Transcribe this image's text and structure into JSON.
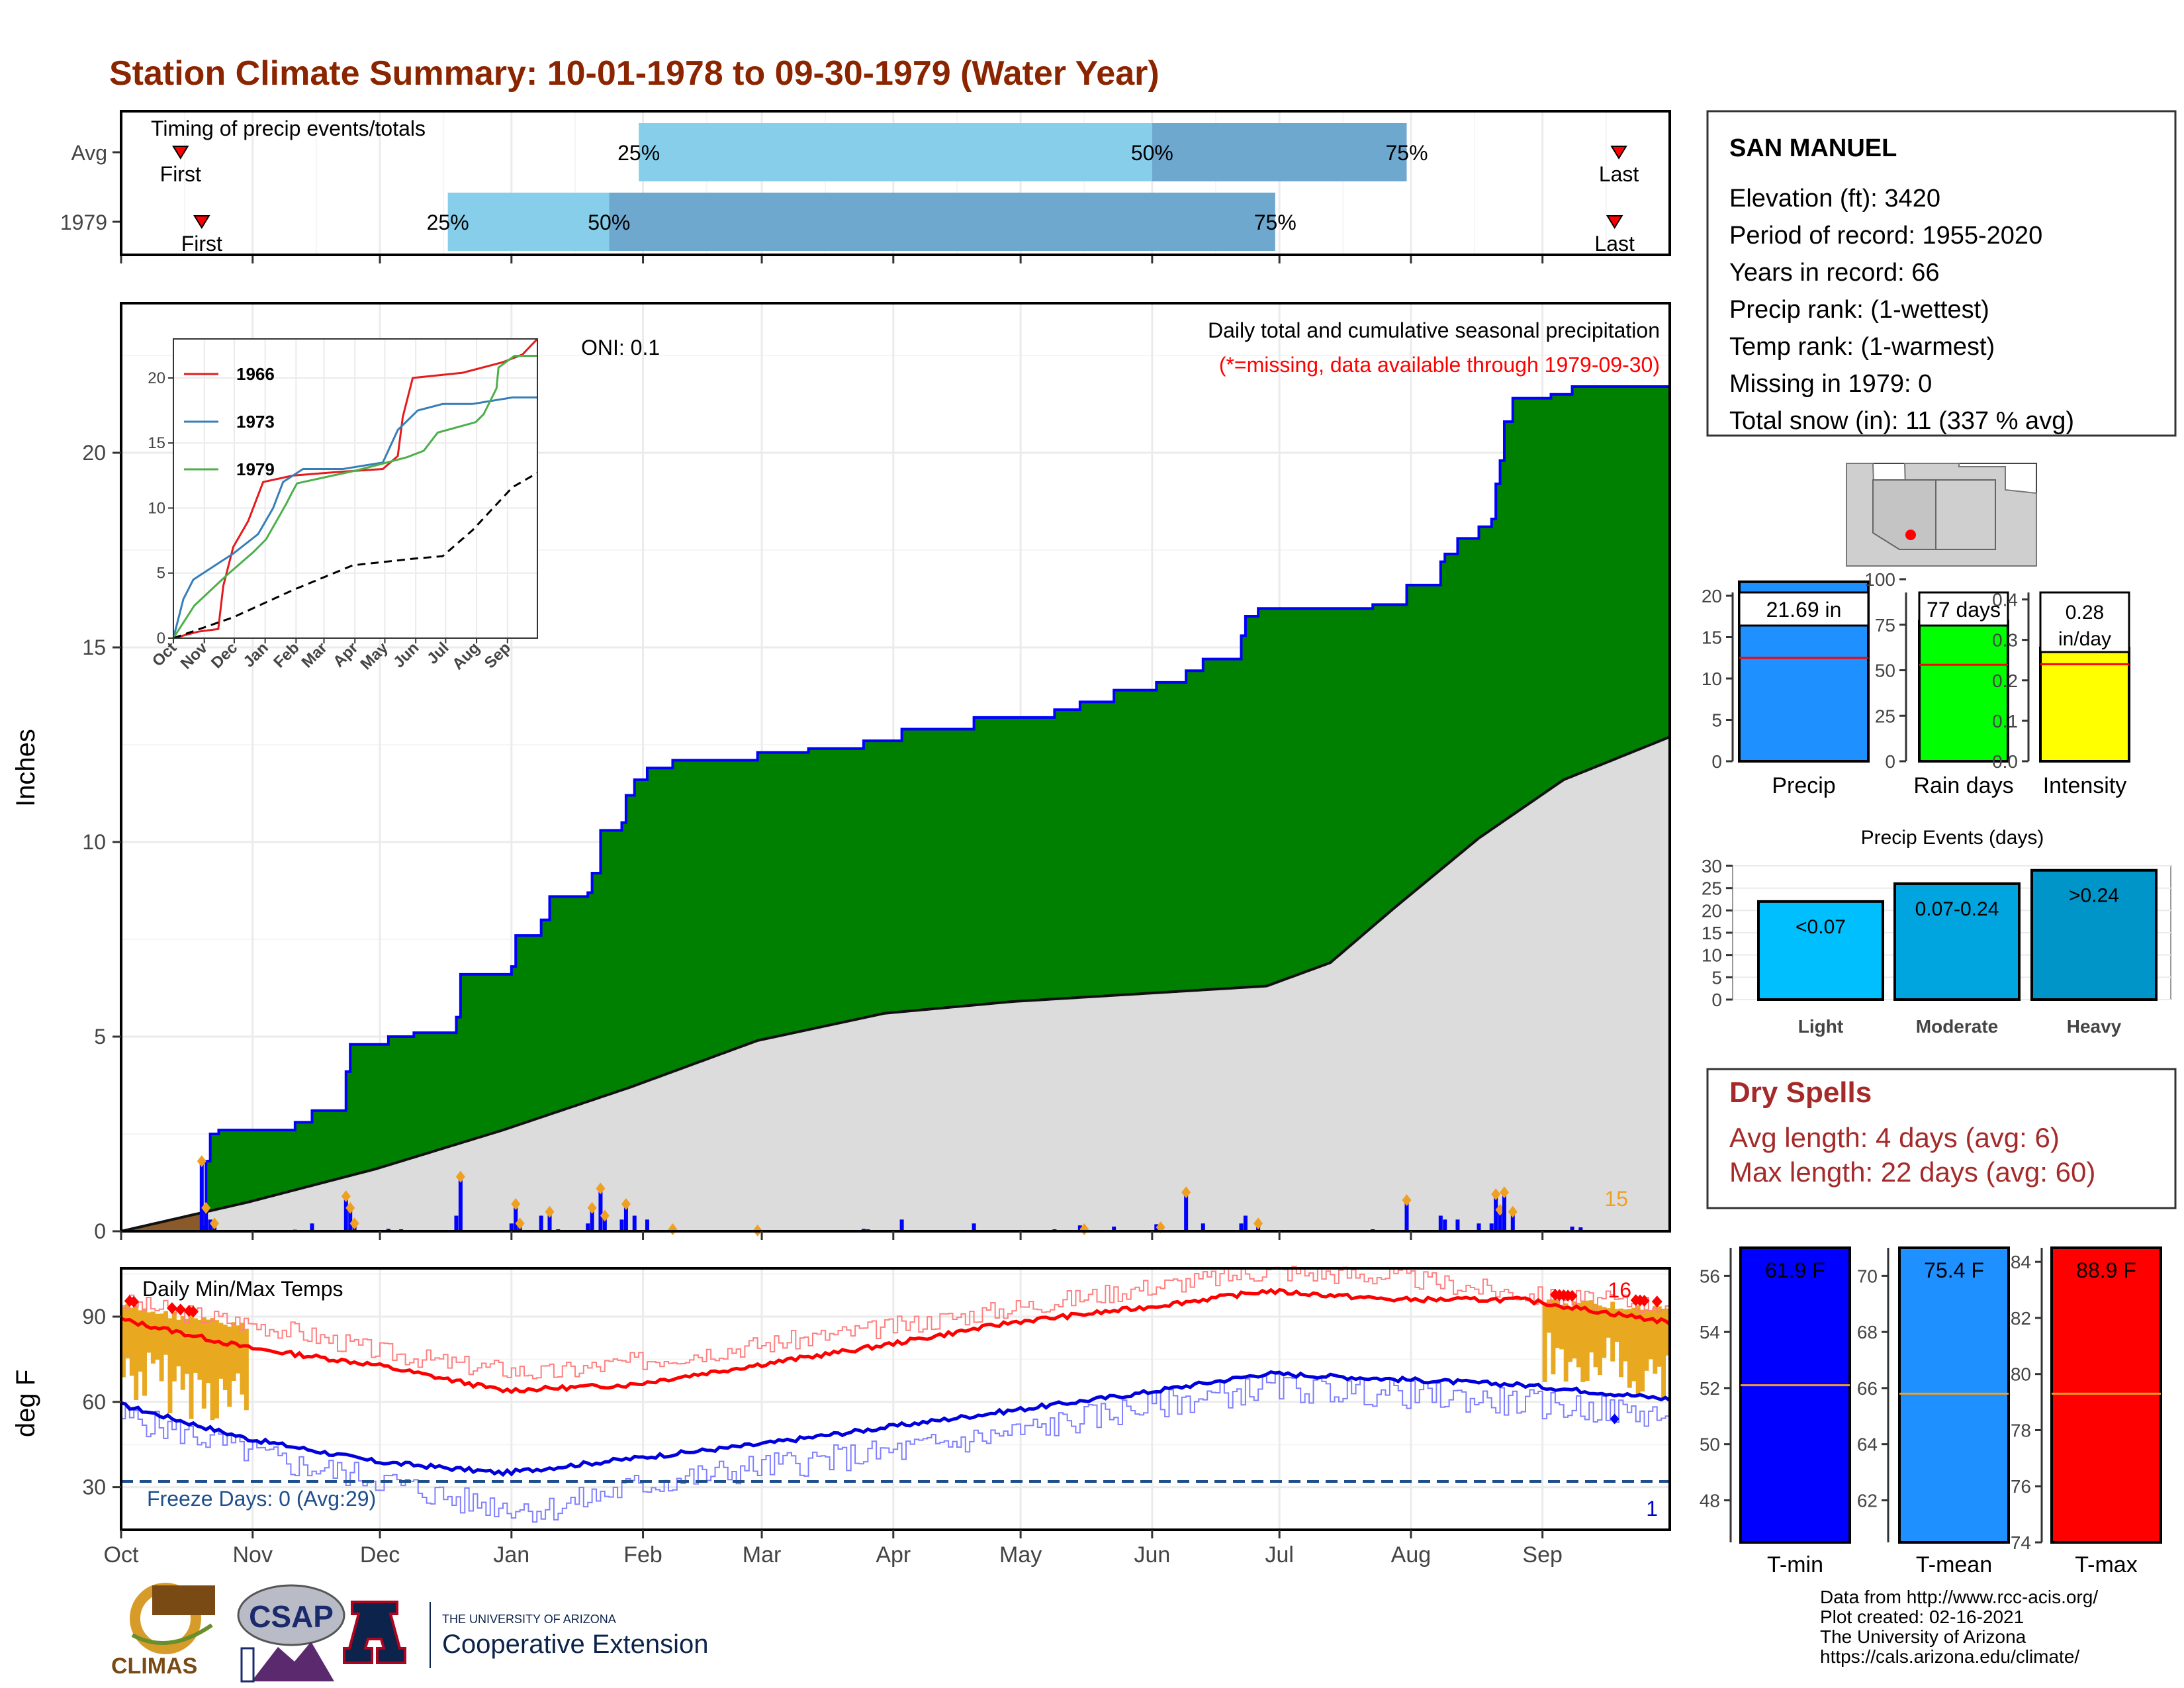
{
  "title": "Station Climate Summary: 10-01-1978 to 09-30-1979 (Water Year)",
  "timing": {
    "label": "Timing of precip events/totals",
    "rows": [
      {
        "name": "Avg",
        "first_day": 14,
        "p25": 122,
        "p50": 243,
        "p75": 303,
        "last_day": 353
      },
      {
        "name": "1979",
        "first_day": 19,
        "p25": 77,
        "p50": 115,
        "p75": 272,
        "last_day": 352
      }
    ],
    "first_label": "First",
    "last_label": "Last",
    "p25_label": "25%",
    "p50_label": "50%",
    "p75_label": "75%"
  },
  "station": {
    "name": "SAN MANUEL",
    "lines": [
      "Elevation (ft): 3420",
      "Period of record: 1955-2020",
      "Years in record: 66",
      "Precip rank:  (1-wettest)",
      "Temp rank:  (1-warmest)",
      "Missing in 1979: 0",
      "Total snow (in): 11 (337 % avg)"
    ]
  },
  "precip_panel": {
    "ylabel": "Inches",
    "oni": "ONI: 0.1",
    "caption": "Daily total and cumulative seasonal precipitation",
    "missing_note": "(*=missing, data available through 1979-09-30)",
    "count_label": "15"
  },
  "temp_panel": {
    "ylabel": "deg F",
    "title": "Daily Min/Max Temps",
    "freeze": "Freeze Days: 0 (Avg:29)",
    "hot_count": "16",
    "cold_count": "1"
  },
  "month_labels": [
    "Oct",
    "Nov",
    "Dec",
    "Jan",
    "Feb",
    "Mar",
    "Apr",
    "May",
    "Jun",
    "Jul",
    "Aug",
    "Sep"
  ],
  "inset_month_labels": [
    "Oct",
    "Nov",
    "Dec",
    "Jan",
    "Feb",
    "Mar",
    "Apr",
    "May",
    "Jun",
    "Jul",
    "Aug",
    "Sep"
  ],
  "bar_stats": [
    {
      "name": "Precip",
      "label": "21.69 in",
      "value": 21.69,
      "avg": 12.5,
      "color": "#1e90ff",
      "ymax": 22,
      "ticks": [
        0,
        5,
        10,
        15,
        20
      ]
    },
    {
      "name": "Rain days",
      "label": "77 days",
      "value": 77,
      "avg": 53,
      "color": "#00ff00",
      "ymax": 100,
      "ticks": [
        0,
        25,
        50,
        75,
        100
      ]
    },
    {
      "name": "Intensity",
      "label": "0.28 in/day",
      "value": 0.28,
      "avg": 0.24,
      "color": "#ffff00",
      "ymax": 0.45,
      "ticks": [
        "0.0",
        "0.1",
        "0.2",
        "0.3",
        "0.4"
      ]
    }
  ],
  "precip_events": {
    "title": "Precip Events (days)",
    "categories": [
      "Light",
      "Moderate",
      "Heavy"
    ],
    "labels": [
      "<0.07",
      "0.07-0.24",
      ">0.24"
    ],
    "values": [
      22,
      26,
      29
    ],
    "colors": [
      "#00bfff",
      "#00a5e0",
      "#0095c8"
    ],
    "ticks": [
      0,
      5,
      10,
      15,
      20,
      25,
      30
    ]
  },
  "dry_spells": {
    "title": "Dry Spells",
    "avg_line": "Avg length: 4 days (avg: 6)",
    "max_line": "Max length: 22 days (avg: 60)"
  },
  "temp_stats": [
    {
      "name": "T-min",
      "label": "61.9 F",
      "value": 61.9,
      "avg": 52.1,
      "color": "#0000ff",
      "ymin": 46.5,
      "ymax": 57,
      "ticks": [
        48,
        50,
        52,
        54,
        56
      ]
    },
    {
      "name": "T-mean",
      "label": "75.4 F",
      "value": 75.4,
      "avg": 65.8,
      "color": "#1e90ff",
      "ymin": 60.5,
      "ymax": 71,
      "ticks": [
        62,
        64,
        66,
        68,
        70
      ]
    },
    {
      "name": "T-max",
      "label": "88.9 F",
      "value": 88.9,
      "avg": 79.3,
      "color": "#ff0000",
      "ymin": 74,
      "ymax": 84.5,
      "ticks": [
        74,
        76,
        78,
        80,
        82,
        84
      ]
    }
  ],
  "footer": {
    "lines": [
      "Data from http://www.rcc-acis.org/",
      "Plot created: 02-16-2021",
      "The University of Arizona",
      "https://cals.arizona.edu/climate/"
    ],
    "logo_climas": "CLIMAS",
    "logo_csap": "CSAP",
    "logo_ua_small": "THE UNIVERSITY OF ARIZONA",
    "logo_ua_big": "Cooperative Extension"
  },
  "chart_data": [
    {
      "type": "area",
      "title": "Daily total and cumulative seasonal precipitation",
      "ylabel": "Inches",
      "ylim": [
        0,
        23.5
      ],
      "x_unit": "day of water year",
      "cumulative_1979": [
        [
          0,
          0
        ],
        [
          19,
          0.1
        ],
        [
          20,
          1.8
        ],
        [
          21,
          2.5
        ],
        [
          23,
          2.6
        ],
        [
          41,
          2.8
        ],
        [
          45,
          3.1
        ],
        [
          53,
          4.1
        ],
        [
          54,
          4.8
        ],
        [
          63,
          5.0
        ],
        [
          69,
          5.1
        ],
        [
          79,
          5.5
        ],
        [
          80,
          6.6
        ],
        [
          92,
          6.8
        ],
        [
          93,
          7.6
        ],
        [
          99,
          8.0
        ],
        [
          101,
          8.6
        ],
        [
          110,
          8.7
        ],
        [
          111,
          9.2
        ],
        [
          113,
          10.3
        ],
        [
          118,
          10.5
        ],
        [
          119,
          11.2
        ],
        [
          121,
          11.6
        ],
        [
          124,
          11.9
        ],
        [
          130,
          12.1
        ],
        [
          150,
          12.3
        ],
        [
          162,
          12.4
        ],
        [
          175,
          12.6
        ],
        [
          184,
          12.9
        ],
        [
          201,
          13.2
        ],
        [
          220,
          13.4
        ],
        [
          226,
          13.6
        ],
        [
          234,
          13.9
        ],
        [
          244,
          14.1
        ],
        [
          251,
          14.4
        ],
        [
          255,
          14.7
        ],
        [
          264,
          15.3
        ],
        [
          265,
          15.8
        ],
        [
          268,
          16.0
        ],
        [
          295,
          16.1
        ],
        [
          303,
          16.6
        ],
        [
          311,
          17.2
        ],
        [
          312,
          17.4
        ],
        [
          315,
          17.8
        ],
        [
          320,
          18.1
        ],
        [
          323,
          18.3
        ],
        [
          324,
          19.2
        ],
        [
          325,
          19.8
        ],
        [
          326,
          20.8
        ],
        [
          328,
          21.4
        ],
        [
          337,
          21.5
        ],
        [
          342,
          21.7
        ],
        [
          365,
          21.7
        ]
      ],
      "average_cumulative": [
        [
          0,
          0
        ],
        [
          30,
          0.75
        ],
        [
          60,
          1.6
        ],
        [
          90,
          2.6
        ],
        [
          120,
          3.7
        ],
        [
          150,
          4.9
        ],
        [
          180,
          5.6
        ],
        [
          210,
          5.9
        ],
        [
          240,
          6.1
        ],
        [
          270,
          6.3
        ],
        [
          285,
          6.9
        ],
        [
          300,
          8.3
        ],
        [
          320,
          10.1
        ],
        [
          340,
          11.6
        ],
        [
          365,
          12.7
        ]
      ],
      "daily_precip": [
        [
          19,
          1.8
        ],
        [
          20,
          0.6
        ],
        [
          21,
          0.3
        ],
        [
          22,
          0.2
        ],
        [
          41,
          0.04
        ],
        [
          45,
          0.2
        ],
        [
          53,
          0.9
        ],
        [
          54,
          0.6
        ],
        [
          55,
          0.2
        ],
        [
          63,
          0.06
        ],
        [
          66,
          0.05
        ],
        [
          79,
          0.4
        ],
        [
          80,
          1.4
        ],
        [
          92,
          0.2
        ],
        [
          93,
          0.7
        ],
        [
          94,
          0.2
        ],
        [
          99,
          0.4
        ],
        [
          101,
          0.5
        ],
        [
          103,
          0.05
        ],
        [
          110,
          0.2
        ],
        [
          111,
          0.6
        ],
        [
          113,
          1.1
        ],
        [
          114,
          0.4
        ],
        [
          118,
          0.3
        ],
        [
          119,
          0.7
        ],
        [
          121,
          0.4
        ],
        [
          124,
          0.3
        ],
        [
          130,
          0.05
        ],
        [
          150,
          0.02
        ],
        [
          162,
          0.02
        ],
        [
          175,
          0.06
        ],
        [
          176,
          0.05
        ],
        [
          184,
          0.3
        ],
        [
          201,
          0.2
        ],
        [
          220,
          0.05
        ],
        [
          226,
          0.15
        ],
        [
          227,
          0.05
        ],
        [
          234,
          0.12
        ],
        [
          244,
          0.18
        ],
        [
          245,
          0.1
        ],
        [
          251,
          1.0
        ],
        [
          255,
          0.2
        ],
        [
          264,
          0.2
        ],
        [
          265,
          0.4
        ],
        [
          268,
          0.2
        ],
        [
          295,
          0.05
        ],
        [
          303,
          0.8
        ],
        [
          311,
          0.4
        ],
        [
          312,
          0.3
        ],
        [
          315,
          0.3
        ],
        [
          320,
          0.2
        ],
        [
          323,
          0.2
        ],
        [
          324,
          0.95
        ],
        [
          325,
          0.55
        ],
        [
          326,
          1.0
        ],
        [
          328,
          0.5
        ],
        [
          337,
          0.03
        ],
        [
          342,
          0.12
        ],
        [
          344,
          0.1
        ]
      ]
    },
    {
      "type": "line",
      "title": "Daily Min/Max Temps",
      "ylabel": "deg F",
      "ylim": [
        15,
        107
      ],
      "freeze_line": 32,
      "avg_max": [
        [
          0,
          89
        ],
        [
          30,
          79
        ],
        [
          60,
          73
        ],
        [
          90,
          64
        ],
        [
          120,
          66
        ],
        [
          150,
          73
        ],
        [
          180,
          80
        ],
        [
          210,
          88
        ],
        [
          240,
          93
        ],
        [
          270,
          99
        ],
        [
          300,
          96
        ],
        [
          330,
          96
        ],
        [
          365,
          88
        ]
      ],
      "avg_min": [
        [
          0,
          59
        ],
        [
          30,
          47
        ],
        [
          60,
          39
        ],
        [
          90,
          35
        ],
        [
          120,
          40
        ],
        [
          150,
          45
        ],
        [
          180,
          51
        ],
        [
          210,
          57
        ],
        [
          240,
          63
        ],
        [
          270,
          70
        ],
        [
          300,
          68
        ],
        [
          330,
          66
        ],
        [
          365,
          61
        ]
      ],
      "max_1979": [
        [
          0,
          95
        ],
        [
          20,
          90
        ],
        [
          40,
          85
        ],
        [
          60,
          78
        ],
        [
          80,
          73
        ],
        [
          100,
          70
        ],
        [
          120,
          74
        ],
        [
          150,
          80
        ],
        [
          180,
          86
        ],
        [
          210,
          93
        ],
        [
          240,
          100
        ],
        [
          270,
          106
        ],
        [
          300,
          104
        ],
        [
          335,
          97
        ],
        [
          365,
          94
        ]
      ],
      "min_1979": [
        [
          0,
          55
        ],
        [
          20,
          47
        ],
        [
          40,
          38
        ],
        [
          60,
          33
        ],
        [
          80,
          25
        ],
        [
          100,
          22
        ],
        [
          120,
          30
        ],
        [
          150,
          37
        ],
        [
          180,
          42
        ],
        [
          210,
          49
        ],
        [
          240,
          58
        ],
        [
          270,
          65
        ],
        [
          300,
          63
        ],
        [
          335,
          59
        ],
        [
          365,
          55
        ]
      ]
    },
    {
      "type": "line",
      "title": "",
      "xlabel": "",
      "ylim": [
        0,
        23
      ],
      "series": [
        {
          "name": "1966",
          "color": "#e41a1c",
          "values": [
            [
              0,
              0
            ],
            [
              25,
              0.5
            ],
            [
              45,
              0.7
            ],
            [
              50,
              4
            ],
            [
              60,
              7
            ],
            [
              75,
              9
            ],
            [
              90,
              12
            ],
            [
              120,
              12.5
            ],
            [
              170,
              12.8
            ],
            [
              210,
              13
            ],
            [
              225,
              14
            ],
            [
              230,
              17
            ],
            [
              240,
              20
            ],
            [
              290,
              20.4
            ],
            [
              330,
              21.2
            ],
            [
              350,
              21.8
            ],
            [
              365,
              23
            ]
          ]
        },
        {
          "name": "1973",
          "color": "#377eb8",
          "values": [
            [
              0,
              0
            ],
            [
              10,
              3
            ],
            [
              20,
              4.5
            ],
            [
              40,
              5.5
            ],
            [
              60,
              6.5
            ],
            [
              85,
              8
            ],
            [
              100,
              10
            ],
            [
              110,
              12
            ],
            [
              130,
              13
            ],
            [
              170,
              13
            ],
            [
              210,
              13.5
            ],
            [
              225,
              16
            ],
            [
              245,
              17.5
            ],
            [
              270,
              18
            ],
            [
              300,
              18
            ],
            [
              340,
              18.5
            ],
            [
              365,
              18.5
            ]
          ]
        },
        {
          "name": "1979",
          "color": "#4daf4a",
          "values": [
            [
              0,
              0
            ],
            [
              21,
              2.5
            ],
            [
              53,
              4.8
            ],
            [
              80,
              6.6
            ],
            [
              93,
              7.6
            ],
            [
              113,
              10.3
            ],
            [
              119,
              11.2
            ],
            [
              124,
              11.9
            ],
            [
              184,
              12.9
            ],
            [
              234,
              13.9
            ],
            [
              251,
              14.4
            ],
            [
              265,
              15.8
            ],
            [
              303,
              16.6
            ],
            [
              311,
              17.2
            ],
            [
              324,
              19.2
            ],
            [
              326,
              20.8
            ],
            [
              342,
              21.7
            ],
            [
              365,
              21.7
            ]
          ]
        },
        {
          "name": "average",
          "values": [
            [
              0,
              0
            ],
            [
              60,
              1.6
            ],
            [
              120,
              3.7
            ],
            [
              180,
              5.6
            ],
            [
              240,
              6.1
            ],
            [
              270,
              6.3
            ],
            [
              300,
              8.3
            ],
            [
              340,
              11.6
            ],
            [
              365,
              12.7
            ]
          ]
        }
      ]
    },
    {
      "type": "bar",
      "title": "Precip Events (days)",
      "categories": [
        "Light",
        "Moderate",
        "Heavy"
      ],
      "values": [
        22,
        26,
        29
      ]
    }
  ]
}
